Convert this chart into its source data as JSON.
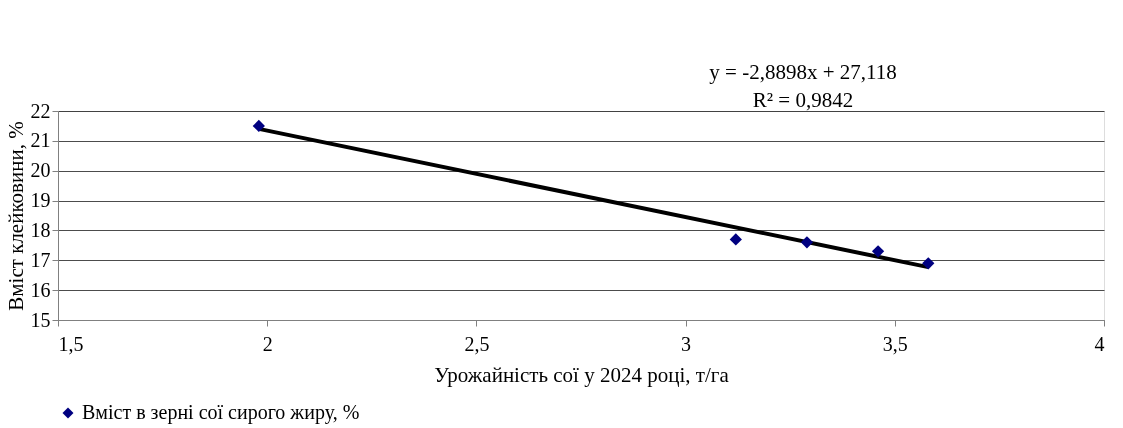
{
  "chart_data": {
    "type": "scatter",
    "xlabel": "Урожайність сої у 2024 році, т/га",
    "ylabel": "Вміст клейковини, %",
    "annotations": [
      "y = -2,8898x + 27,118",
      "R² = 0,9842"
    ],
    "series": [
      {
        "name": "Вміст в зерні сої сирого жиру, %",
        "type": "scatter",
        "color": "#000080",
        "marker": "diamond",
        "x": [
          1.98,
          3.12,
          3.29,
          3.46,
          3.58
        ],
        "values": [
          21.5,
          17.7,
          17.6,
          17.3,
          16.9
        ]
      },
      {
        "type": "line",
        "color": "#000000",
        "line_style": "solid",
        "x": [
          1.98,
          3.58
        ],
        "values": [
          21.4,
          16.77
        ]
      }
    ],
    "xlim": [
      1.5,
      4
    ],
    "xticks": [
      {
        "value": 1.5,
        "label": "1,5"
      },
      2,
      {
        "value": 2.5,
        "label": "2,5"
      },
      3,
      {
        "value": 3.5,
        "label": "3,5"
      },
      4
    ],
    "ylim": [
      15,
      22
    ],
    "yticks": [
      15,
      16,
      17,
      18,
      19,
      20,
      21,
      22
    ],
    "grid": "y",
    "legend": "bottom"
  }
}
